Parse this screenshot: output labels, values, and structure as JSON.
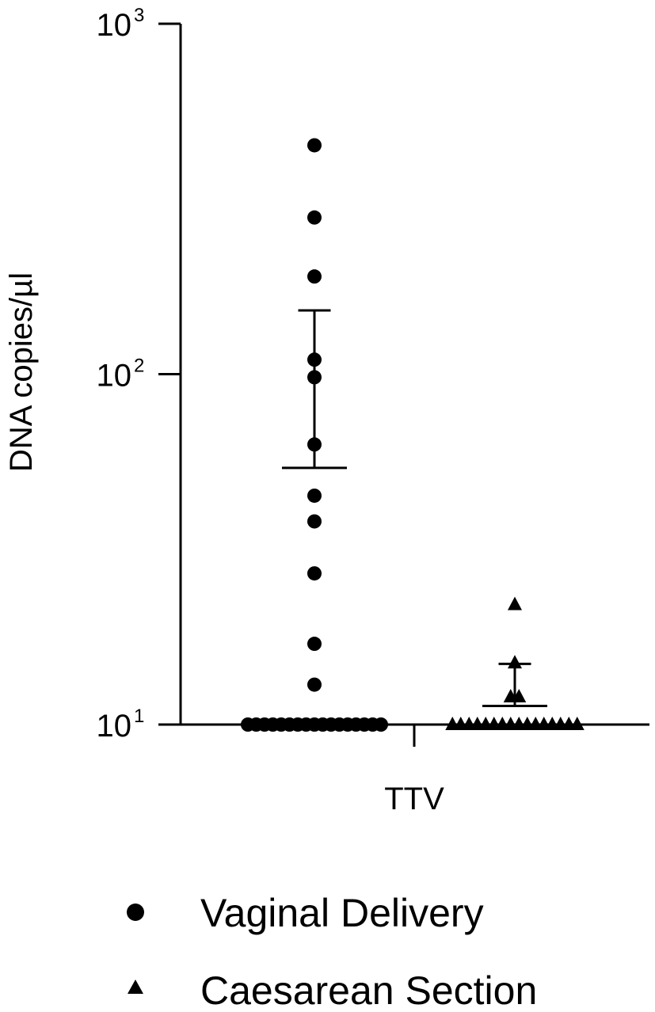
{
  "chart_data": {
    "type": "scatter",
    "title": "",
    "ylabel": "DNA copies/µl",
    "ylabel_text": "DNA copies/µl",
    "y_scale": "log",
    "ylim": [
      10,
      1000
    ],
    "y_ticks": [
      {
        "value": 10,
        "base": "10",
        "exp": "1"
      },
      {
        "value": 100,
        "base": "10",
        "exp": "2"
      },
      {
        "value": 1000,
        "base": "10",
        "exp": "3"
      }
    ],
    "categories": [
      "TTV"
    ],
    "grid": false,
    "legend_position": "bottom",
    "series": [
      {
        "name": "Vaginal Delivery",
        "marker": "circle",
        "color": "#000000",
        "values": [
          450,
          280,
          190,
          110,
          98,
          63,
          45,
          38,
          27,
          17,
          13,
          10,
          10,
          10,
          10,
          10,
          10,
          10,
          10,
          10,
          10,
          10,
          10,
          10,
          10,
          10,
          10,
          10
        ],
        "mean": 54,
        "error_upper": 152
      },
      {
        "name": "Caesarean Section",
        "marker": "triangle",
        "color": "#000000",
        "values": [
          22,
          15,
          12,
          12,
          10,
          10,
          10,
          10,
          10,
          10,
          10,
          10,
          10,
          10,
          10,
          10,
          10,
          10,
          10,
          10
        ],
        "mean": 11.3,
        "error_upper": 14.9
      }
    ]
  }
}
